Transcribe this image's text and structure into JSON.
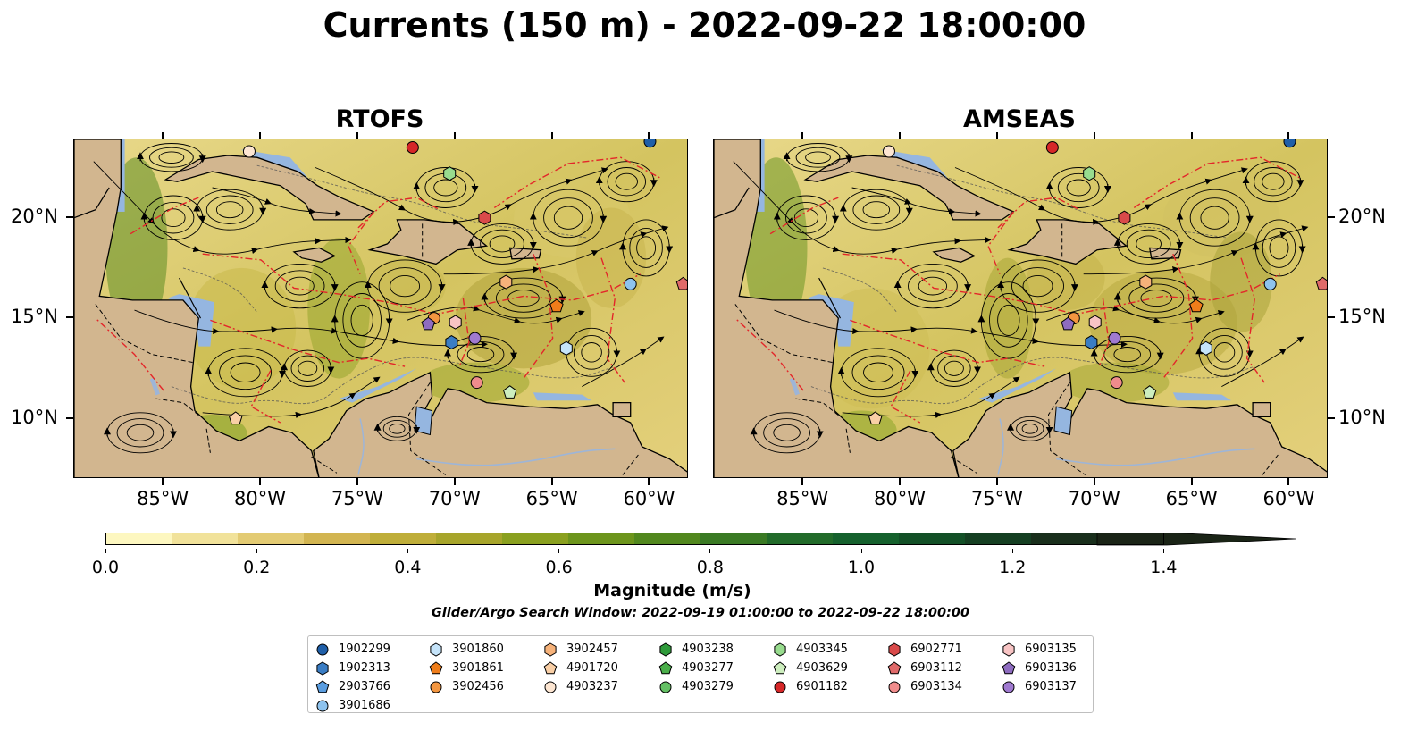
{
  "title": "Currents (150 m) - 2022-09-22 18:00:00",
  "panels": [
    {
      "title": "RTOFS"
    },
    {
      "title": "AMSEAS"
    }
  ],
  "lon_labels": [
    "85°W",
    "80°W",
    "75°W",
    "70°W",
    "65°W",
    "60°W"
  ],
  "lat_labels": [
    "20°N",
    "15°N",
    "10°N"
  ],
  "colorbar": {
    "label": "Magnitude (m/s)",
    "ticks": [
      "0.0",
      "0.2",
      "0.4",
      "0.6",
      "0.8",
      "1.0",
      "1.2",
      "1.4"
    ],
    "colors": [
      "#fdf7c0",
      "#f1e29a",
      "#e3cb73",
      "#d2b551",
      "#bfae3a",
      "#a7a52b",
      "#8aa01f",
      "#6d951c",
      "#52881e",
      "#3a7a24",
      "#226b2a",
      "#15612d",
      "#135027",
      "#153f22",
      "#192f1c",
      "#1a2416"
    ]
  },
  "search_window": "Glider/Argo Search Window: 2022-09-19 01:00:00 to 2022-09-22 18:00:00",
  "legend": [
    {
      "id": "1902299",
      "shape": "circle",
      "color": "#1f5fa8"
    },
    {
      "id": "1902313",
      "shape": "hexagon",
      "color": "#3a7dc4"
    },
    {
      "id": "2903766",
      "shape": "pentagon",
      "color": "#5a9de0"
    },
    {
      "id": "3901686",
      "shape": "circle",
      "color": "#8ec3ee"
    },
    {
      "id": "3901860",
      "shape": "hexagon",
      "color": "#c5e4fa"
    },
    {
      "id": "3901861",
      "shape": "pentagon",
      "color": "#ef7d1a"
    },
    {
      "id": "3902456",
      "shape": "circle",
      "color": "#f39640"
    },
    {
      "id": "3902457",
      "shape": "hexagon",
      "color": "#f6b27a"
    },
    {
      "id": "4901720",
      "shape": "pentagon",
      "color": "#f9cfa6"
    },
    {
      "id": "4903237",
      "shape": "circle",
      "color": "#fde6d2"
    },
    {
      "id": "4903238",
      "shape": "hexagon",
      "color": "#2e9a3a"
    },
    {
      "id": "4903277",
      "shape": "pentagon",
      "color": "#4aae4a"
    },
    {
      "id": "4903279",
      "shape": "circle",
      "color": "#64c064"
    },
    {
      "id": "4903345",
      "shape": "hexagon",
      "color": "#98dc8e"
    },
    {
      "id": "4903629",
      "shape": "pentagon",
      "color": "#cdeebe"
    },
    {
      "id": "6901182",
      "shape": "circle",
      "color": "#d62728"
    },
    {
      "id": "6902771",
      "shape": "hexagon",
      "color": "#d94a4a"
    },
    {
      "id": "6903112",
      "shape": "pentagon",
      "color": "#e06a6a"
    },
    {
      "id": "6903134",
      "shape": "circle",
      "color": "#f08c8c"
    },
    {
      "id": "6903135",
      "shape": "hexagon",
      "color": "#f8c4c4"
    },
    {
      "id": "6903136",
      "shape": "pentagon",
      "color": "#8e6cc0"
    },
    {
      "id": "6903137",
      "shape": "circle",
      "color": "#a07ad0"
    }
  ],
  "markers": [
    {
      "legend_ref": "4903237",
      "lon": -80.6,
      "lat": 23.3
    },
    {
      "legend_ref": "6901182",
      "lon": -72.2,
      "lat": 23.5
    },
    {
      "legend_ref": "1902299",
      "lon": -60.0,
      "lat": 23.8
    },
    {
      "legend_ref": "4903345",
      "lon": -70.3,
      "lat": 22.2
    },
    {
      "legend_ref": "6902771",
      "lon": -68.5,
      "lat": 20.0
    },
    {
      "legend_ref": "3902457",
      "lon": -67.4,
      "lat": 16.8
    },
    {
      "legend_ref": "3901686",
      "lon": -61.0,
      "lat": 16.7
    },
    {
      "legend_ref": "6903112",
      "lon": -58.3,
      "lat": 16.7
    },
    {
      "legend_ref": "3902456",
      "lon": -71.1,
      "lat": 15.0
    },
    {
      "legend_ref": "6903136",
      "lon": -71.4,
      "lat": 14.7
    },
    {
      "legend_ref": "6903135",
      "lon": -70.0,
      "lat": 14.8
    },
    {
      "legend_ref": "3901861",
      "lon": -64.8,
      "lat": 15.6
    },
    {
      "legend_ref": "1902313",
      "lon": -70.2,
      "lat": 13.8
    },
    {
      "legend_ref": "6903137",
      "lon": -69.0,
      "lat": 14.0
    },
    {
      "legend_ref": "3901860",
      "lon": -64.3,
      "lat": 13.5
    },
    {
      "legend_ref": "6903134",
      "lon": -68.9,
      "lat": 11.8
    },
    {
      "legend_ref": "4903629",
      "lon": -67.2,
      "lat": 11.3
    },
    {
      "legend_ref": "4901720",
      "lon": -81.3,
      "lat": 10.0
    }
  ]
}
